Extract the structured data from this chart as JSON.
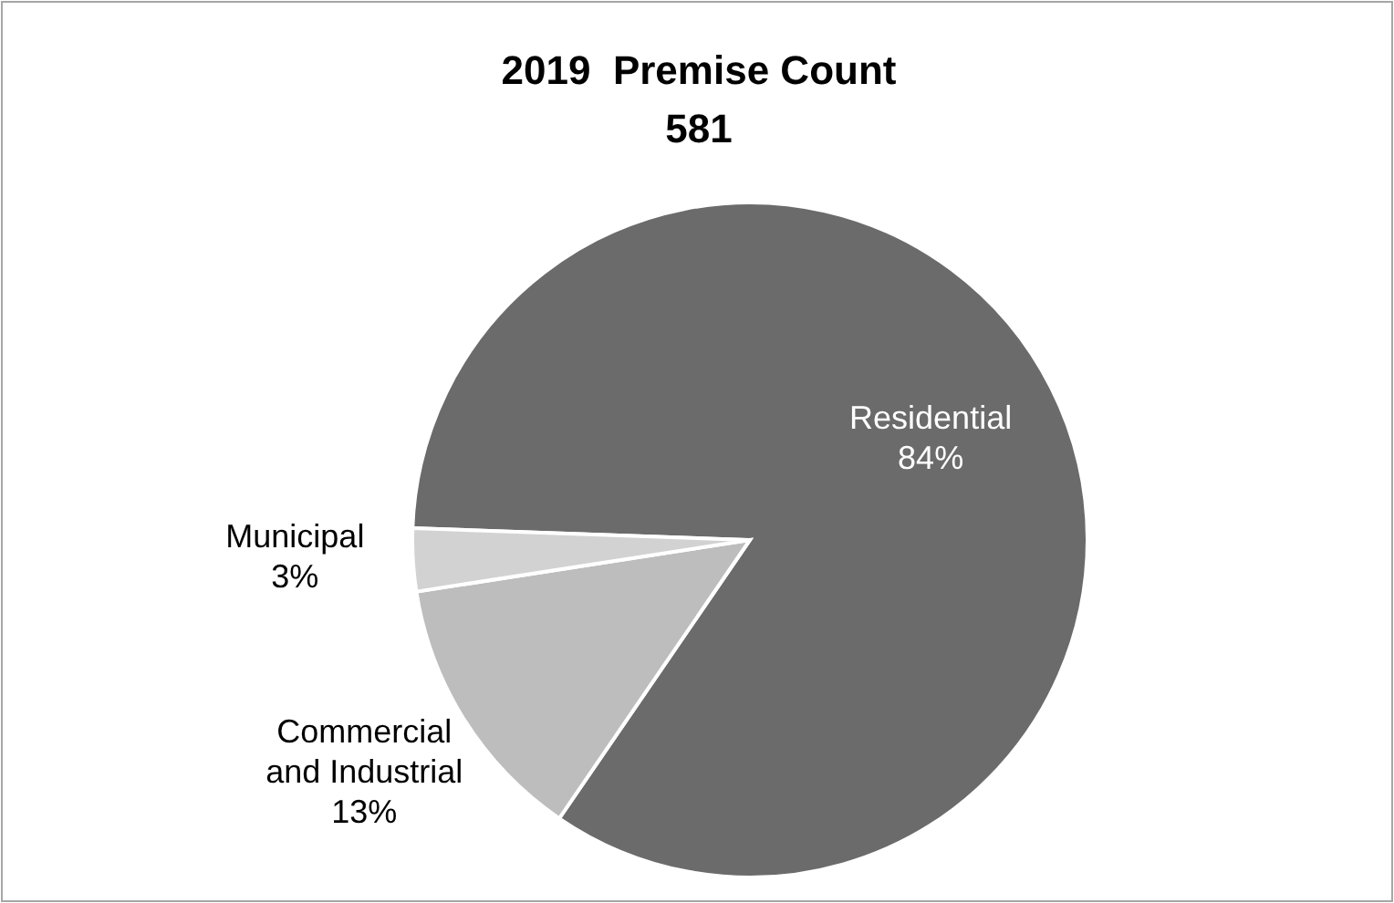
{
  "chart_data": {
    "type": "pie",
    "title": "2019  Premise Count",
    "subtitle": "581",
    "categories": [
      "Residential",
      "Commercial and Industrial",
      "Municipal"
    ],
    "values": [
      84,
      13,
      3
    ],
    "colors": [
      "#6b6b6b",
      "#bdbdbd",
      "#d2d2d2"
    ],
    "value_labels": [
      "84%",
      "13%",
      "3%"
    ]
  }
}
